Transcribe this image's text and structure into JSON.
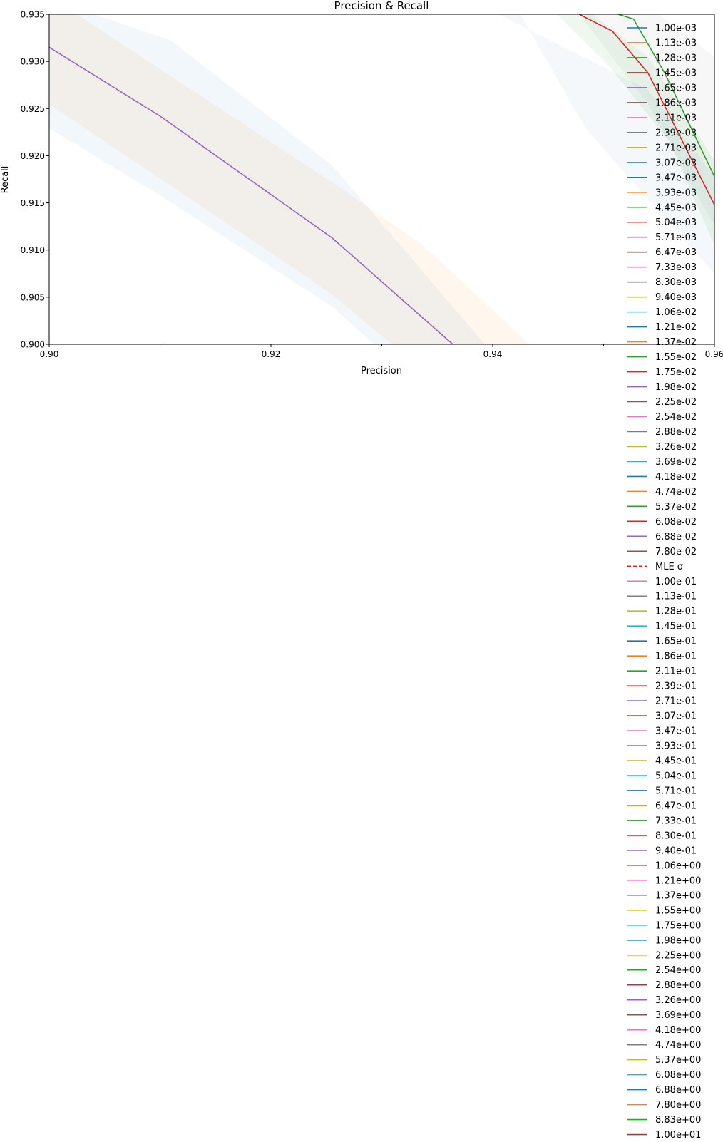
{
  "chart_data": {
    "type": "line",
    "title": "Precision & Recall",
    "xlabel": "Precision",
    "ylabel": "Recall",
    "xlim": [
      0.9,
      0.96
    ],
    "ylim": [
      0.9,
      0.935
    ],
    "xticks": [
      "0.90",
      "0.92",
      "0.94",
      "0.96"
    ],
    "yticks": [
      "0.900",
      "0.905",
      "0.910",
      "0.915",
      "0.920",
      "0.925",
      "0.930",
      "0.935"
    ],
    "grid": false,
    "legend_position": "right",
    "series": [
      {
        "name": "1.65e-03",
        "color": "#9467bd",
        "x": [
          0.9,
          0.91,
          0.9255,
          0.9364
        ],
        "y": [
          0.9315,
          0.9242,
          0.9113,
          0.9
        ]
      },
      {
        "name": "1.45e-03",
        "color": "#d62728",
        "x": [
          0.9478,
          0.9508,
          0.954,
          0.96
        ],
        "y": [
          0.935,
          0.9332,
          0.9288,
          0.9148
        ]
      },
      {
        "name": "1.28e-03",
        "color": "#2ca02c",
        "x": [
          0.9513,
          0.9527,
          0.9555,
          0.96
        ],
        "y": [
          0.935,
          0.9345,
          0.9288,
          0.9178
        ]
      }
    ],
    "bands": [
      {
        "color": "#1f77b4",
        "opacity": 0.06,
        "upper": [
          [
            0.9,
            0.935
          ],
          [
            0.904,
            0.935
          ],
          [
            0.911,
            0.9322
          ],
          [
            0.9255,
            0.919
          ],
          [
            0.9393,
            0.9
          ]
        ],
        "lower": [
          [
            0.9,
            0.9229
          ],
          [
            0.91,
            0.9158
          ],
          [
            0.9255,
            0.904
          ],
          [
            0.9293,
            0.9
          ]
        ]
      },
      {
        "color": "#ff7f0e",
        "opacity": 0.07,
        "upper": [
          [
            0.9,
            0.935
          ],
          [
            0.9025,
            0.935
          ],
          [
            0.9255,
            0.9172
          ],
          [
            0.9335,
            0.9107
          ],
          [
            0.9433,
            0.9
          ]
        ],
        "lower": [
          [
            0.9,
            0.9255
          ],
          [
            0.9255,
            0.9053
          ],
          [
            0.9309,
            0.9
          ]
        ]
      },
      {
        "color": "#1f77b4",
        "opacity": 0.05,
        "upper": [
          [
            0.9405,
            0.935
          ],
          [
            0.954,
            0.927
          ],
          [
            0.96,
            0.9178
          ]
        ],
        "lower": [
          [
            0.9425,
            0.935
          ],
          [
            0.9483,
            0.923
          ],
          [
            0.954,
            0.9154
          ],
          [
            0.96,
            0.9075
          ]
        ]
      },
      {
        "color": "#2ca02c",
        "opacity": 0.08,
        "upper": [
          [
            0.9418,
            0.935
          ],
          [
            0.949,
            0.935
          ],
          [
            0.954,
            0.9305
          ],
          [
            0.96,
            0.9195
          ]
        ],
        "lower": [
          [
            0.9458,
            0.935
          ],
          [
            0.9505,
            0.9295
          ],
          [
            0.956,
            0.9214
          ],
          [
            0.96,
            0.9105
          ]
        ]
      },
      {
        "color": "#7f7f7f",
        "opacity": 0.06,
        "upper": [
          [
            0.9448,
            0.935
          ],
          [
            0.955,
            0.935
          ],
          [
            0.96,
            0.9305
          ]
        ],
        "lower": [
          [
            0.9478,
            0.935
          ],
          [
            0.954,
            0.9255
          ],
          [
            0.96,
            0.9125
          ]
        ]
      }
    ]
  },
  "legend": [
    {
      "label": "1.00e-03",
      "color": "#1f77b4"
    },
    {
      "label": "1.13e-03",
      "color": "#ff7f0e"
    },
    {
      "label": "1.28e-03",
      "color": "#2ca02c"
    },
    {
      "label": "1.45e-03",
      "color": "#d62728"
    },
    {
      "label": "1.65e-03",
      "color": "#9467bd"
    },
    {
      "label": "1.86e-03",
      "color": "#8c564b"
    },
    {
      "label": "2.11e-03",
      "color": "#e377c2"
    },
    {
      "label": "2.39e-03",
      "color": "#7f7f7f"
    },
    {
      "label": "2.71e-03",
      "color": "#bcbd22"
    },
    {
      "label": "3.07e-03",
      "color": "#17becf"
    },
    {
      "label": "3.47e-03",
      "color": "#1f77b4"
    },
    {
      "label": "3.93e-03",
      "color": "#ff7f0e"
    },
    {
      "label": "4.45e-03",
      "color": "#2ca02c"
    },
    {
      "label": "5.04e-03",
      "color": "#d62728"
    },
    {
      "label": "5.71e-03",
      "color": "#9467bd"
    },
    {
      "label": "6.47e-03",
      "color": "#8c564b"
    },
    {
      "label": "7.33e-03",
      "color": "#e377c2"
    },
    {
      "label": "8.30e-03",
      "color": "#7f7f7f"
    },
    {
      "label": "9.40e-03",
      "color": "#bcbd22"
    },
    {
      "label": "1.06e-02",
      "color": "#17becf"
    },
    {
      "label": "1.21e-02",
      "color": "#1f77b4"
    },
    {
      "label": "1.37e-02",
      "color": "#ff7f0e"
    },
    {
      "label": "1.55e-02",
      "color": "#2ca02c"
    },
    {
      "label": "1.75e-02",
      "color": "#d62728"
    },
    {
      "label": "1.98e-02",
      "color": "#9467bd"
    },
    {
      "label": "2.25e-02",
      "color": "#8c564b"
    },
    {
      "label": "2.54e-02",
      "color": "#e377c2"
    },
    {
      "label": "2.88e-02",
      "color": "#7f7f7f"
    },
    {
      "label": "3.26e-02",
      "color": "#bcbd22"
    },
    {
      "label": "3.69e-02",
      "color": "#17becf"
    },
    {
      "label": "4.18e-02",
      "color": "#1f77b4"
    },
    {
      "label": "4.74e-02",
      "color": "#ff7f0e"
    },
    {
      "label": "5.37e-02",
      "color": "#2ca02c"
    },
    {
      "label": "6.08e-02",
      "color": "#d62728"
    },
    {
      "label": "6.88e-02",
      "color": "#9467bd"
    },
    {
      "label": "7.80e-02",
      "color": "#8c564b"
    },
    {
      "label": "MLE σ",
      "color": "#d62728",
      "dashed": true
    },
    {
      "label": "1.00e-01",
      "color": "#e377c2"
    },
    {
      "label": "1.13e-01",
      "color": "#7f7f7f"
    },
    {
      "label": "1.28e-01",
      "color": "#bcbd22"
    },
    {
      "label": "1.45e-01",
      "color": "#17becf"
    },
    {
      "label": "1.65e-01",
      "color": "#1f77b4"
    },
    {
      "label": "1.86e-01",
      "color": "#ff7f0e"
    },
    {
      "label": "2.11e-01",
      "color": "#2ca02c"
    },
    {
      "label": "2.39e-01",
      "color": "#d62728"
    },
    {
      "label": "2.71e-01",
      "color": "#9467bd"
    },
    {
      "label": "3.07e-01",
      "color": "#8c564b"
    },
    {
      "label": "3.47e-01",
      "color": "#e377c2"
    },
    {
      "label": "3.93e-01",
      "color": "#7f7f7f"
    },
    {
      "label": "4.45e-01",
      "color": "#bcbd22"
    },
    {
      "label": "5.04e-01",
      "color": "#17becf"
    },
    {
      "label": "5.71e-01",
      "color": "#1f77b4"
    },
    {
      "label": "6.47e-01",
      "color": "#ff7f0e"
    },
    {
      "label": "7.33e-01",
      "color": "#2ca02c"
    },
    {
      "label": "8.30e-01",
      "color": "#d62728"
    },
    {
      "label": "9.40e-01",
      "color": "#9467bd"
    },
    {
      "label": "1.06e+00",
      "color": "#8c564b"
    },
    {
      "label": "1.21e+00",
      "color": "#e377c2"
    },
    {
      "label": "1.37e+00",
      "color": "#7f7f7f"
    },
    {
      "label": "1.55e+00",
      "color": "#bcbd22"
    },
    {
      "label": "1.75e+00",
      "color": "#17becf"
    },
    {
      "label": "1.98e+00",
      "color": "#1f77b4"
    },
    {
      "label": "2.25e+00",
      "color": "#ff7f0e"
    },
    {
      "label": "2.54e+00",
      "color": "#2ca02c"
    },
    {
      "label": "2.88e+00",
      "color": "#d62728"
    },
    {
      "label": "3.26e+00",
      "color": "#9467bd"
    },
    {
      "label": "3.69e+00",
      "color": "#8c564b"
    },
    {
      "label": "4.18e+00",
      "color": "#e377c2"
    },
    {
      "label": "4.74e+00",
      "color": "#7f7f7f"
    },
    {
      "label": "5.37e+00",
      "color": "#bcbd22"
    },
    {
      "label": "6.08e+00",
      "color": "#17becf"
    },
    {
      "label": "6.88e+00",
      "color": "#1f77b4"
    },
    {
      "label": "7.80e+00",
      "color": "#ff7f0e"
    },
    {
      "label": "8.83e+00",
      "color": "#2ca02c"
    },
    {
      "label": "1.00e+01",
      "color": "#d62728"
    }
  ]
}
